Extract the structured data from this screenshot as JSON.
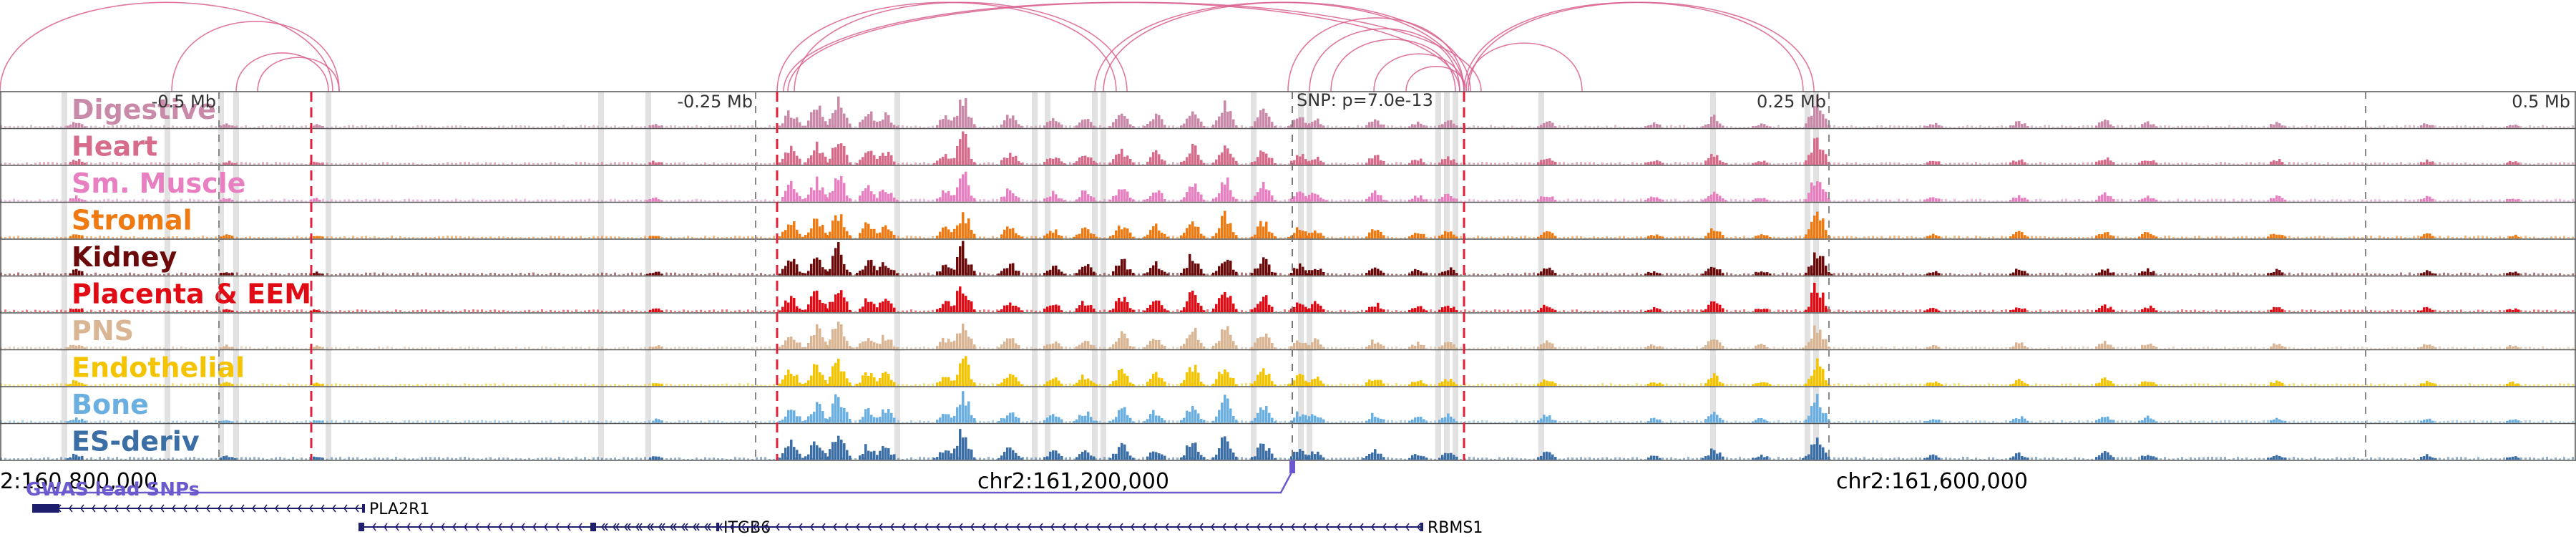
{
  "chart_data": {
    "type": "genome-browser",
    "x_unit": "bp (chr2)",
    "x_range": [
      160700000,
      161900000
    ],
    "relative_ticks": [
      {
        "pos": 160802000,
        "label": "-0.5 Mb"
      },
      {
        "pos": 161052000,
        "label": "-0.25 Mb"
      },
      {
        "pos": 161552000,
        "label": "0.25 Mb"
      },
      {
        "pos": 161802000,
        "label": "0.5 Mb"
      }
    ],
    "lead_snp": {
      "pos": 161302000,
      "label": "SNP: p=7.0e-13"
    },
    "coordinate_labels": [
      {
        "pos": 160800000,
        "text": "2:160,800,000"
      },
      {
        "pos": 161200000,
        "text": "chr2:161,200,000"
      },
      {
        "pos": 161600000,
        "text": "chr2:161,600,000"
      }
    ],
    "tracks": [
      {
        "name": "Digestive",
        "color": "#c88aa8"
      },
      {
        "name": "Heart",
        "color": "#d66b8a"
      },
      {
        "name": "Sm. Muscle",
        "color": "#e87fc0"
      },
      {
        "name": "Stromal",
        "color": "#f07a12"
      },
      {
        "name": "Kidney",
        "color": "#6b0a0a"
      },
      {
        "name": "Placenta & EEM",
        "color": "#e00b14"
      },
      {
        "name": "PNS",
        "color": "#d9b593"
      },
      {
        "name": "Endothelial",
        "color": "#f5c400"
      },
      {
        "name": "Bone",
        "color": "#6aafe0"
      },
      {
        "name": "ES-deriv",
        "color": "#3a6ea5"
      }
    ],
    "red_markers": [
      160845000,
      161062000,
      161382000
    ],
    "gray_markers": [
      160730000,
      160778000,
      160803000,
      160810000,
      160853000,
      160980000,
      161002000,
      161118000,
      161182000,
      161188000,
      161210000,
      161214000,
      161284000,
      161306000,
      161310000,
      161370000,
      161374000,
      161378000,
      161418000,
      161498000,
      161542000,
      161546000
    ],
    "arcs": [
      {
        "a": 160700000,
        "b": 160855000
      },
      {
        "a": 160780000,
        "b": 160858000
      },
      {
        "a": 160810000,
        "b": 160853000
      },
      {
        "a": 160820000,
        "b": 160858000
      },
      {
        "a": 161062000,
        "b": 161220000
      },
      {
        "a": 161065000,
        "b": 161380000
      },
      {
        "a": 161067000,
        "b": 161390000
      },
      {
        "a": 161070000,
        "b": 161225000
      },
      {
        "a": 161210000,
        "b": 161382000
      },
      {
        "a": 161214000,
        "b": 161385000
      },
      {
        "a": 161300000,
        "b": 161382000
      },
      {
        "a": 161310000,
        "b": 161380000
      },
      {
        "a": 161320000,
        "b": 161378000
      },
      {
        "a": 161340000,
        "b": 161382000
      },
      {
        "a": 161355000,
        "b": 161383000
      },
      {
        "a": 161382000,
        "b": 161540000
      },
      {
        "a": 161384000,
        "b": 161545000
      },
      {
        "a": 161383000,
        "b": 161437000
      }
    ],
    "gwas": {
      "label": "GWAS lead SNPs",
      "snp_pos": 161302000
    },
    "genes": [
      {
        "name": "PLA2R1",
        "start": 160715000,
        "end": 160870000,
        "strand": "-",
        "row": 0
      },
      {
        "name": "ITGB6",
        "start": 160867000,
        "end": 161035000,
        "strand": "-",
        "row": 1
      },
      {
        "name": "RBMS1",
        "start": 160975000,
        "end": 161363000,
        "strand": "-",
        "row": 1
      }
    ],
    "peak_regions": [
      {
        "pos": 160735000,
        "h": 0.18
      },
      {
        "pos": 160805000,
        "h": 0.12
      },
      {
        "pos": 160847000,
        "h": 0.1
      },
      {
        "pos": 161005000,
        "h": 0.12
      },
      {
        "pos": 161068000,
        "h": 0.55
      },
      {
        "pos": 161080000,
        "h": 0.7
      },
      {
        "pos": 161090000,
        "h": 0.9
      },
      {
        "pos": 161104000,
        "h": 0.5
      },
      {
        "pos": 161112000,
        "h": 0.45
      },
      {
        "pos": 161140000,
        "h": 0.35
      },
      {
        "pos": 161148000,
        "h": 0.95
      },
      {
        "pos": 161170000,
        "h": 0.4
      },
      {
        "pos": 161190000,
        "h": 0.3
      },
      {
        "pos": 161205000,
        "h": 0.35
      },
      {
        "pos": 161222000,
        "h": 0.5
      },
      {
        "pos": 161238000,
        "h": 0.4
      },
      {
        "pos": 161255000,
        "h": 0.65
      },
      {
        "pos": 161270000,
        "h": 0.75
      },
      {
        "pos": 161288000,
        "h": 0.55
      },
      {
        "pos": 161305000,
        "h": 0.35
      },
      {
        "pos": 161312000,
        "h": 0.3
      },
      {
        "pos": 161340000,
        "h": 0.3
      },
      {
        "pos": 161360000,
        "h": 0.2
      },
      {
        "pos": 161374000,
        "h": 0.25
      },
      {
        "pos": 161420000,
        "h": 0.25
      },
      {
        "pos": 161470000,
        "h": 0.15
      },
      {
        "pos": 161498000,
        "h": 0.35
      },
      {
        "pos": 161520000,
        "h": 0.15
      },
      {
        "pos": 161546000,
        "h": 0.9
      },
      {
        "pos": 161600000,
        "h": 0.15
      },
      {
        "pos": 161640000,
        "h": 0.2
      },
      {
        "pos": 161680000,
        "h": 0.25
      },
      {
        "pos": 161700000,
        "h": 0.2
      },
      {
        "pos": 161760000,
        "h": 0.18
      },
      {
        "pos": 161830000,
        "h": 0.15
      },
      {
        "pos": 161870000,
        "h": 0.12
      }
    ]
  }
}
